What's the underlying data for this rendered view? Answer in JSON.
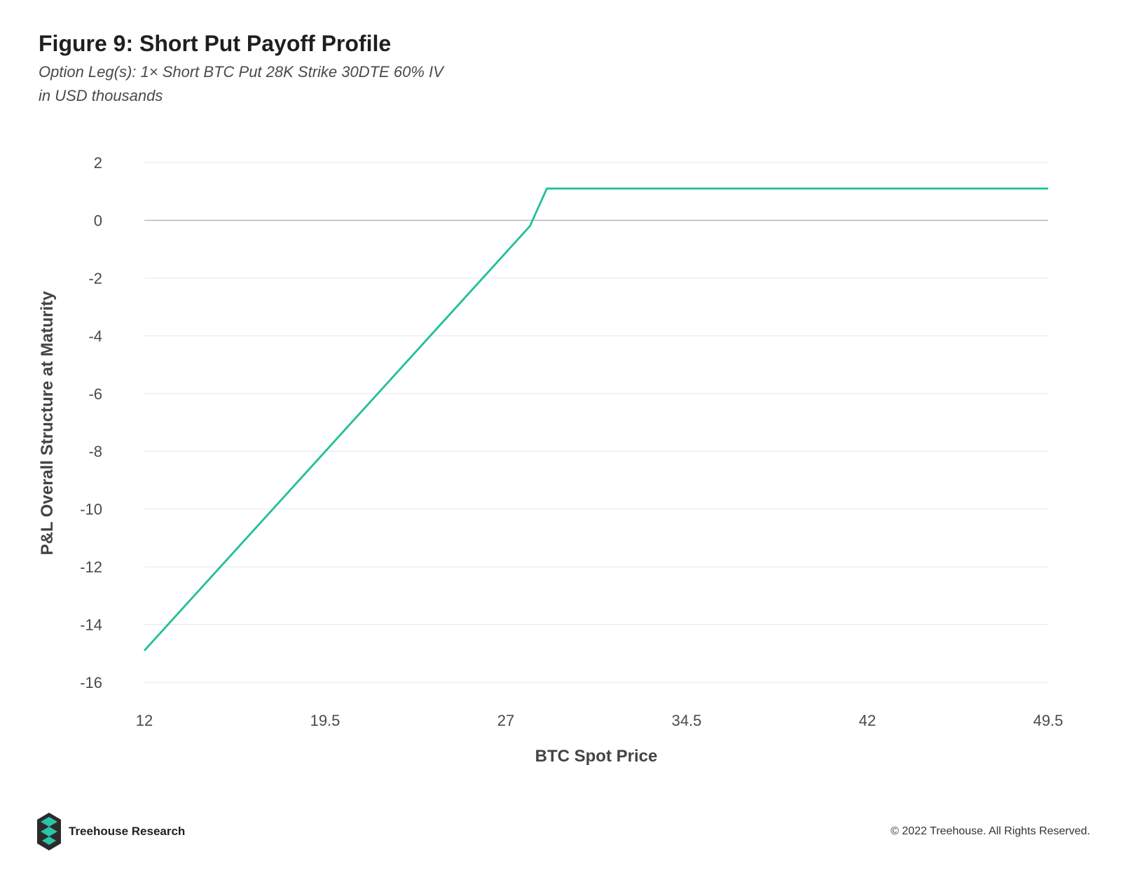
{
  "header": {
    "title": "Figure 9: Short Put Payoff Profile",
    "subtitle_1": "Option Leg(s): 1× Short BTC Put 28K Strike 30DTE 60% IV",
    "subtitle_2": "in USD thousands"
  },
  "footer": {
    "brand": "Treehouse Research",
    "copyright": "© 2022 Treehouse. All Rights Reserved."
  },
  "colors": {
    "line": "#1fbf9a",
    "grid": "#e6e6e6",
    "zero_line": "#b8b8b8",
    "logo_dark": "#2b2b2b",
    "logo_accent": "#2cc4a8"
  },
  "chart_data": {
    "type": "line",
    "title": "Figure 9: Short Put Payoff Profile",
    "xlabel": "BTC Spot Price",
    "ylabel": "P&L Overall Structure at Maturity",
    "xlim": [
      12,
      49.5
    ],
    "ylim": [
      -16,
      2
    ],
    "x_ticks": [
      "12",
      "19.5",
      "27",
      "34.5",
      "42",
      "49.5"
    ],
    "y_ticks": [
      "2",
      "0",
      "-2",
      "-4",
      "-6",
      "-8",
      "-10",
      "-12",
      "-14",
      "-16"
    ],
    "grid": true,
    "legend": "none",
    "series": [
      {
        "x": [
          12,
          28,
          28.7,
          49.5
        ],
        "y": [
          -14.9,
          -0.2,
          1.1,
          1.1
        ]
      }
    ]
  }
}
